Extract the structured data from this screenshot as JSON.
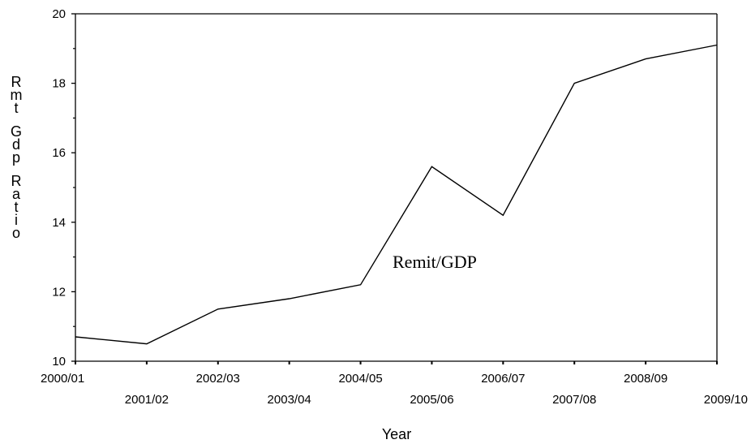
{
  "chart_data": {
    "type": "line",
    "categories": [
      "2000/01",
      "2001/02",
      "2002/03",
      "2003/04",
      "2004/05",
      "2005/06",
      "2006/07",
      "2007/08",
      "2008/09",
      "2009/10"
    ],
    "values": [
      10.7,
      10.5,
      11.5,
      11.8,
      12.2,
      15.6,
      14.2,
      18.0,
      18.7,
      19.1
    ],
    "title": "",
    "xlabel": "Year",
    "ylabel": "Rmt Gdp Ratio",
    "ylim": [
      10,
      20
    ],
    "yticks_major": [
      10,
      12,
      14,
      16,
      18,
      20
    ],
    "annotation": "Remit/GDP",
    "grid": false,
    "line_color": "#000000"
  }
}
